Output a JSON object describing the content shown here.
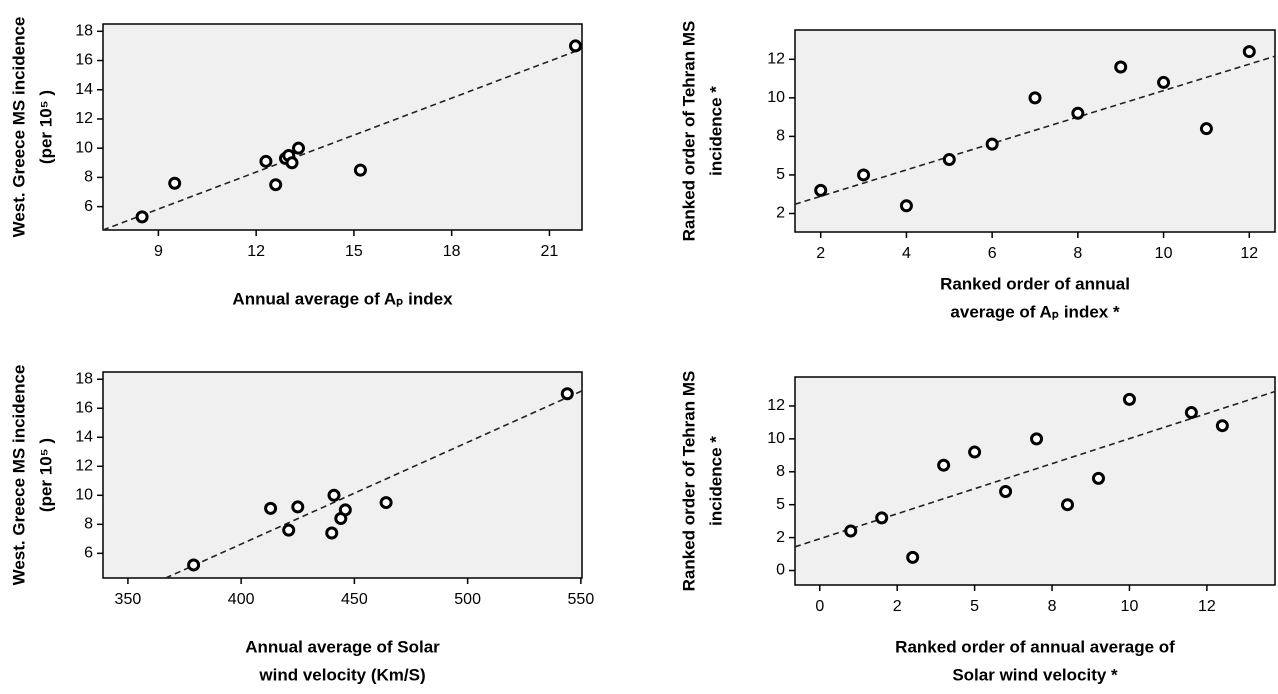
{
  "chart_data": [
    {
      "type": "scatter",
      "x_label": [
        "Annual average of Aₚ index"
      ],
      "y_label": [
        "West. Greece MS incidence",
        "(per 10⁵ )"
      ],
      "x": [
        8.5,
        9.5,
        12.3,
        12.6,
        12.9,
        13.0,
        13.1,
        13.3,
        15.2,
        21.8
      ],
      "values": [
        5.3,
        7.6,
        9.1,
        7.5,
        9.3,
        9.5,
        9.0,
        10.0,
        8.5,
        17.0
      ],
      "fit_line": {
        "x": [
          7.3,
          22.0
        ],
        "y": [
          4.4,
          16.8
        ]
      },
      "xlim": [
        7.3,
        22.0
      ],
      "ylim": [
        4.4,
        18.5
      ],
      "xticks": [
        9,
        12,
        15,
        18,
        21
      ],
      "yticks": [
        6,
        8,
        10,
        12,
        14,
        16,
        18
      ]
    },
    {
      "type": "scatter",
      "x_label": [
        "Ranked order of annual",
        "average of Aₚ index *"
      ],
      "y_label": [
        "Ranked order of Tehran MS",
        "incidence *"
      ],
      "x": [
        2,
        3,
        4,
        5,
        6,
        7,
        8,
        9,
        10,
        11,
        12
      ],
      "values": [
        4,
        5,
        3,
        6,
        7,
        10,
        9,
        12,
        11,
        8,
        13
      ],
      "fit_line": {
        "x": [
          1.4,
          12.6
        ],
        "y": [
          3.1,
          12.7
        ]
      },
      "xlim": [
        1.4,
        12.6
      ],
      "ylim": [
        1.3,
        14.4
      ],
      "xticks": [
        2,
        4,
        6,
        8,
        10,
        12
      ],
      "yticks": [
        {
          "value": 2.5,
          "label": "2"
        },
        5,
        {
          "value": 7.5,
          "label": "8"
        },
        10,
        {
          "value": 12.5,
          "label": "12"
        }
      ]
    },
    {
      "type": "scatter",
      "x_label": [
        "Annual average of Solar",
        "wind velocity (Km/S)"
      ],
      "y_label": [
        "West. Greece MS incidence",
        "(per 10⁵ )"
      ],
      "x": [
        379,
        413,
        421,
        425,
        441,
        440,
        444,
        446,
        464,
        544
      ],
      "values": [
        5.2,
        9.1,
        7.6,
        9.2,
        10.0,
        7.4,
        8.4,
        9.0,
        9.5,
        17.0
      ],
      "fit_line": {
        "x": [
          366.7,
          550.5
        ],
        "y": [
          4.3,
          17.2
        ]
      },
      "xlim": [
        339,
        550.5
      ],
      "ylim": [
        4.3,
        18.5
      ],
      "xticks": [
        350,
        400,
        450,
        500,
        550
      ],
      "yticks": [
        6,
        8,
        10,
        12,
        14,
        16,
        18
      ]
    },
    {
      "type": "scatter",
      "x_label": [
        "Ranked order of annual average of",
        "Solar wind velocity *"
      ],
      "y_label": [
        "Ranked order of Tehran MS",
        "incidence *"
      ],
      "x": [
        1,
        2,
        3,
        4,
        5,
        6,
        7,
        8,
        9,
        10,
        12,
        13
      ],
      "values": [
        3,
        4,
        1,
        8,
        9,
        6,
        10,
        5,
        7,
        13,
        12,
        11
      ],
      "fit_line": {
        "x": [
          -0.8,
          14.7
        ],
        "y": [
          1.8,
          13.6
        ]
      },
      "xlim": [
        -0.8,
        14.7
      ],
      "ylim": [
        -1.1,
        14.7
      ],
      "xticks": [
        0,
        {
          "value": 2.5,
          "label": "2"
        },
        5,
        {
          "value": 7.5,
          "label": "8"
        },
        10,
        {
          "value": 12.5,
          "label": "12"
        }
      ],
      "yticks": [
        0,
        {
          "value": 2.5,
          "label": "2"
        },
        5,
        {
          "value": 7.5,
          "label": "8"
        },
        10,
        {
          "value": 12.5,
          "label": "12"
        }
      ]
    }
  ]
}
